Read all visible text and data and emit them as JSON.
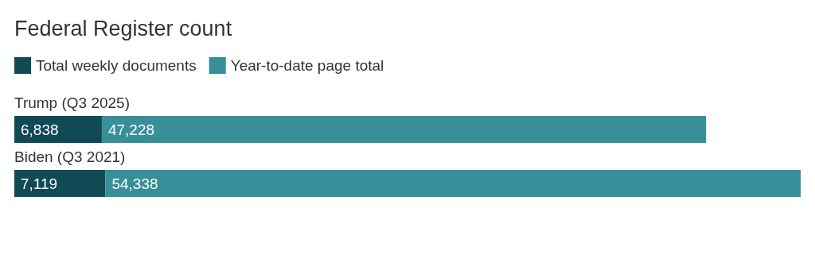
{
  "chart_data": {
    "type": "bar",
    "title": "Federal Register count",
    "orientation": "horizontal",
    "stacked": true,
    "categories": [
      "Trump (Q3 2025)",
      "Biden (Q3 2021)"
    ],
    "series": [
      {
        "name": "Total weekly documents",
        "color": "#0f4a55",
        "values": [
          6838,
          7119
        ],
        "value_labels": [
          "6,838",
          "7,119"
        ]
      },
      {
        "name": "Year-to-date page total",
        "color": "#368f99",
        "values": [
          47228,
          54338
        ],
        "value_labels": [
          "47,228",
          "54,338"
        ]
      }
    ],
    "legend": "top left",
    "tick_labels": "y",
    "grid": false
  }
}
